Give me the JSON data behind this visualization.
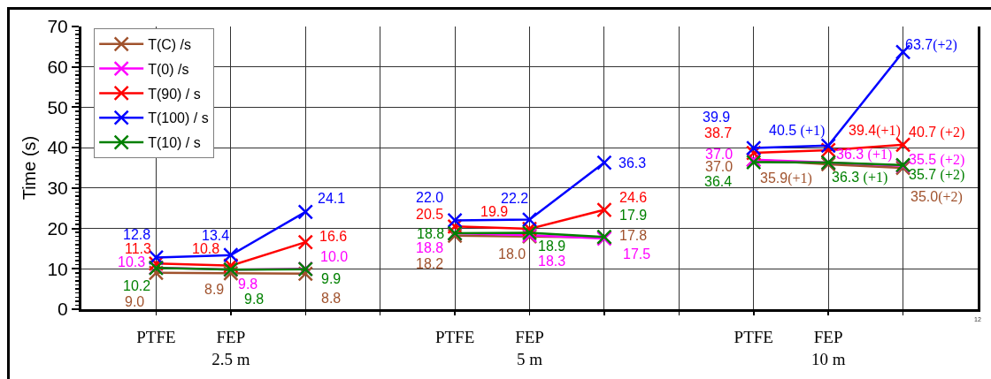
{
  "chart_data": {
    "type": "line",
    "ylabel": "Time (s)",
    "categories": [
      "PTFE",
      "FEP\n2.5 m",
      null,
      null,
      "PTFE",
      "FEP\n5 m",
      null,
      null,
      "PTFE",
      "FEP\n10 m",
      null
    ],
    "ylim": [
      0,
      70
    ],
    "yticks": [
      0,
      {
        "value": 1,
        "label": null
      },
      {
        "value": 2,
        "label": null
      },
      {
        "value": 3,
        "label": null
      },
      {
        "value": 4,
        "label": null
      },
      {
        "value": 5,
        "label": null
      },
      {
        "value": 6,
        "label": null
      },
      {
        "value": 7,
        "label": null
      },
      {
        "value": 8,
        "label": null
      },
      {
        "value": 9,
        "label": null
      },
      10,
      {
        "value": 11,
        "label": null
      },
      {
        "value": 12,
        "label": null
      },
      {
        "value": 13,
        "label": null
      },
      {
        "value": 14,
        "label": null
      },
      {
        "value": 15,
        "label": null
      },
      {
        "value": 16,
        "label": null
      },
      {
        "value": 17,
        "label": null
      },
      {
        "value": 18,
        "label": null
      },
      {
        "value": 19,
        "label": null
      },
      20,
      {
        "value": 21,
        "label": null
      },
      {
        "value": 22,
        "label": null
      },
      {
        "value": 23,
        "label": null
      },
      {
        "value": 24,
        "label": null
      },
      {
        "value": 25,
        "label": null
      },
      {
        "value": 26,
        "label": null
      },
      {
        "value": 27,
        "label": null
      },
      {
        "value": 28,
        "label": null
      },
      {
        "value": 29,
        "label": null
      },
      30,
      {
        "value": 31,
        "label": null
      },
      {
        "value": 32,
        "label": null
      },
      {
        "value": 33,
        "label": null
      },
      {
        "value": 34,
        "label": null
      },
      {
        "value": 35,
        "label": null
      },
      {
        "value": 36,
        "label": null
      },
      {
        "value": 37,
        "label": null
      },
      {
        "value": 38,
        "label": null
      },
      {
        "value": 39,
        "label": null
      },
      40,
      {
        "value": 41,
        "label": null
      },
      {
        "value": 42,
        "label": null
      },
      {
        "value": 43,
        "label": null
      },
      {
        "value": 44,
        "label": null
      },
      {
        "value": 45,
        "label": null
      },
      {
        "value": 46,
        "label": null
      },
      {
        "value": 47,
        "label": null
      },
      {
        "value": 48,
        "label": null
      },
      {
        "value": 49,
        "label": null
      },
      50,
      {
        "value": 51,
        "label": null
      },
      {
        "value": 52,
        "label": null
      },
      {
        "value": 53,
        "label": null
      },
      {
        "value": 54,
        "label": null
      },
      {
        "value": 55,
        "label": null
      },
      {
        "value": 56,
        "label": null
      },
      {
        "value": 57,
        "label": null
      },
      {
        "value": 58,
        "label": null
      },
      {
        "value": 59,
        "label": null
      },
      60,
      {
        "value": 61,
        "label": null
      },
      {
        "value": 62,
        "label": null
      },
      {
        "value": 63,
        "label": null
      },
      {
        "value": 64,
        "label": null
      },
      {
        "value": 65,
        "label": null
      },
      {
        "value": 66,
        "label": null
      },
      {
        "value": 67,
        "label": null
      },
      {
        "value": 68,
        "label": null
      },
      {
        "value": 69,
        "label": null
      },
      70
    ],
    "grid": true,
    "legend": "top left",
    "marker": "cross",
    "series": [
      {
        "name": "T(C) /s",
        "color": "#a0522d",
        "values": [
          9.0,
          8.9,
          8.8,
          null,
          18.2,
          18.0,
          17.8,
          null,
          37.0,
          35.9,
          35.0
        ],
        "value_labels": [
          "9.0",
          "8.9",
          "8.8",
          null,
          "18.2",
          "18.0",
          "17.8",
          null,
          "37.0",
          "35.9(+1)",
          "35.0(+2)"
        ]
      },
      {
        "name": "T(0) /s",
        "color": "#ff00ff",
        "values": [
          10.3,
          9.8,
          10.0,
          null,
          18.8,
          18.3,
          17.5,
          null,
          37.0,
          36.3,
          35.5
        ],
        "value_labels": [
          "10.3",
          "9.8",
          "10.0",
          null,
          "18.8",
          "18.3",
          "17.5",
          null,
          "37.0",
          "36.3 (+1)",
          "35.5 (+2)"
        ]
      },
      {
        "name": "T(90) / s",
        "color": "#ff0000",
        "values": [
          11.3,
          10.8,
          16.6,
          null,
          20.5,
          19.9,
          24.6,
          null,
          38.7,
          39.4,
          40.7
        ],
        "value_labels": [
          "11.3",
          "10.8",
          "16.6",
          null,
          "20.5",
          "19.9",
          "24.6",
          null,
          "38.7",
          "39.4(+1)",
          "40.7 (+2)"
        ]
      },
      {
        "name": "T(100) / s",
        "color": "#0000ff",
        "values": [
          12.8,
          13.4,
          24.1,
          null,
          22.0,
          22.2,
          36.3,
          null,
          39.9,
          40.5,
          63.7
        ],
        "value_labels": [
          "12.8",
          "13.4",
          "24.1",
          null,
          "22.0",
          "22.2",
          "36.3",
          null,
          "39.9",
          "40.5 (+1)",
          "63.7(+2)"
        ]
      },
      {
        "name": "T(10) / s",
        "color": "#008000",
        "values": [
          10.2,
          9.8,
          9.9,
          null,
          18.8,
          18.9,
          17.9,
          null,
          36.4,
          36.3,
          35.7
        ],
        "value_labels": [
          "10.2",
          "9.8",
          "9.9",
          null,
          "18.8",
          "18.9",
          "17.9",
          null,
          "36.4",
          "36.3 (+1)",
          "35.7 (+2)"
        ]
      }
    ],
    "annotations": [
      "12"
    ]
  }
}
